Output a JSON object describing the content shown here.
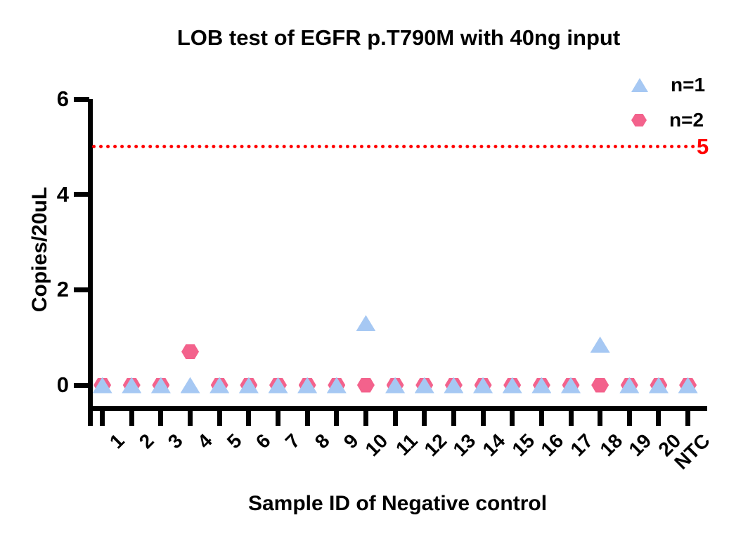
{
  "chart_data": {
    "type": "scatter",
    "title": "LOB test of EGFR p.T790M with 40ng input",
    "xlabel": "Sample ID of Negative control",
    "ylabel": "Copies/20uL",
    "categories": [
      "1",
      "2",
      "3",
      "4",
      "5",
      "6",
      "7",
      "8",
      "9",
      "10",
      "11",
      "12",
      "13",
      "14",
      "15",
      "16",
      "17",
      "18",
      "19",
      "20",
      "NTC"
    ],
    "series": [
      {
        "name": "n=1",
        "marker": "triangle",
        "color": "#a6c8f3",
        "values": [
          0,
          0,
          0,
          0,
          0,
          0,
          0,
          0,
          0,
          1.3,
          0,
          0,
          0,
          0,
          0,
          0,
          0,
          0.85,
          0,
          0,
          0
        ]
      },
      {
        "name": "n=2",
        "marker": "hexagon",
        "color": "#f3628c",
        "values": [
          0,
          0,
          0,
          0.7,
          0,
          0,
          0,
          0,
          0,
          0,
          0,
          0,
          0,
          0,
          0,
          0,
          0,
          0,
          0,
          0,
          0
        ]
      }
    ],
    "yticks": [
      "0",
      "2",
      "4",
      "6"
    ],
    "ylim": [
      0,
      6
    ],
    "threshold": {
      "value": 5,
      "label": "5",
      "color": "#ff0000",
      "style": "dotted"
    },
    "legend_position": "top-right",
    "grid": false,
    "axis_color": "#000000",
    "background_color": "#ffffff"
  }
}
